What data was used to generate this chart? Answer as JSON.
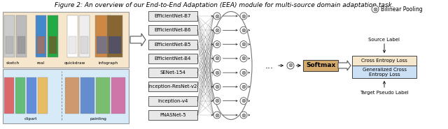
{
  "title": "Figure 2: An overview of our End-to-End Adaptation (EEA) module for multi-source domain adaptation task.",
  "title_fontsize": 6.5,
  "domain_box_top_color": "#f5e6cc",
  "domain_box_bot_color": "#d6eaf8",
  "model_box_color": "#e8e8e8",
  "model_box_edge": "#444444",
  "softmax_color": "#d4a96a",
  "softmax_edge": "#444444",
  "loss_box1_color": "#f5e6cc",
  "loss_box2_color": "#cce0f5",
  "loss_box_edge": "#444444",
  "model_boxes": [
    "EfficientNet-B7",
    "EfficientNet-B6",
    "EfficientNet-B5",
    "EfficientNet-B4",
    "SENet-154",
    "Inception-ResNet-v2",
    "Inception-v4",
    "PNASNet-5"
  ],
  "domain_labels_top": [
    "sketch",
    "real",
    "quickdraw",
    "infograph"
  ],
  "domain_labels_bot": [
    "clipart",
    "painting"
  ],
  "bilinear_label": "Bilinear Pooling",
  "source_label": "Source Label",
  "target_label": "Target Pseudo Label",
  "loss1_label": "Cross Entropy Loss",
  "loss2_label": "Generalized Cross\nEntropy Loss",
  "softmax_label": "Softmax",
  "dots_label": "...",
  "figure_width": 6.4,
  "figure_height": 1.85
}
